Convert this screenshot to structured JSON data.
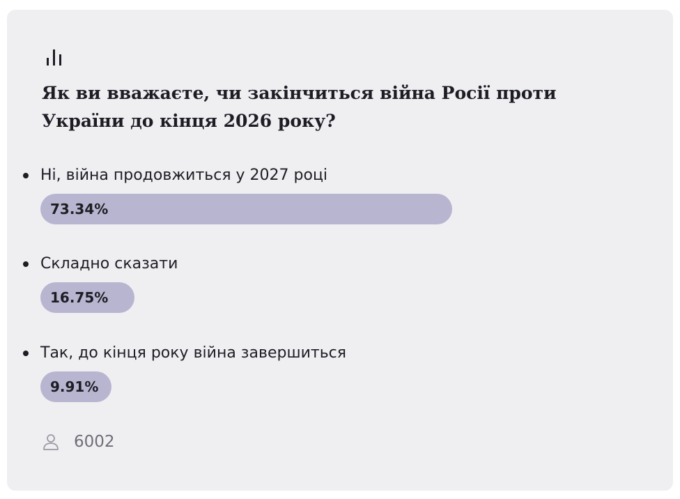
{
  "poll": {
    "icon": "bar-chart-icon",
    "question": "Як ви вважаєте, чи закінчиться війна Росії проти України до кінця 2026 року?",
    "options": [
      {
        "label": "Ні, війна продовжиться у 2027 році",
        "value_text": "73.34%",
        "percent": 73.34
      },
      {
        "label": "Складно сказати",
        "value_text": "16.75%",
        "percent": 16.75
      },
      {
        "label": "Так, до кінця року війна завершиться",
        "value_text": "9.91%",
        "percent": 9.91
      }
    ],
    "voters_icon": "user-icon",
    "voters_count": "6002"
  },
  "colors": {
    "card_background": "#efeff2",
    "bar_fill": "#b8b5d0",
    "text_primary": "#1d1d24",
    "text_muted": "#6e6e78"
  }
}
